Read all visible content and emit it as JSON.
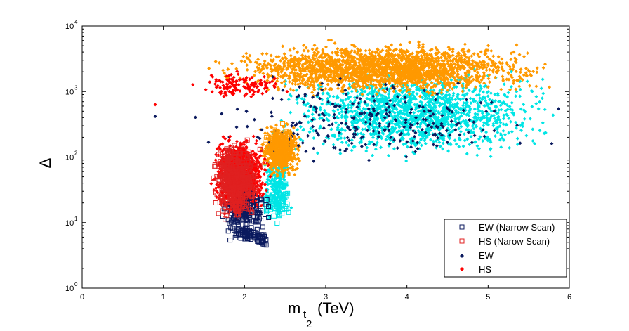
{
  "chart_data": {
    "type": "scatter",
    "title": "",
    "xlabel": {
      "main": "m",
      "sub": "t",
      "subsub": "2",
      "unit": "(TeV)"
    },
    "ylabel": "Δ",
    "xlim": [
      0,
      6
    ],
    "ylim": [
      1,
      10000
    ],
    "yscale": "log",
    "grid": false,
    "legend_position": "bottom-right",
    "x_ticks": [
      0,
      1,
      2,
      3,
      4,
      5,
      6
    ],
    "x_tick_labels": [
      "0",
      "1",
      "2",
      "3",
      "4",
      "5",
      "6"
    ],
    "y_ticks": [
      {
        "base": "10",
        "exp": "0"
      },
      {
        "base": "10",
        "exp": "1"
      },
      {
        "base": "10",
        "exp": "2"
      },
      {
        "base": "10",
        "exp": "3"
      },
      {
        "base": "10",
        "exp": "4"
      }
    ],
    "series": [
      {
        "name": "EW (Narrow Scan)",
        "marker": "open-square",
        "color": "#0b1a5e",
        "regions": [
          {
            "x": [
              1.65,
              2.35
            ],
            "logy": [
              0.85,
              1.6
            ],
            "count": 160
          },
          {
            "x": [
              1.75,
              2.3
            ],
            "logy": [
              0.65,
              1.0
            ],
            "count": 70
          },
          {
            "x": [
              2.1,
              2.3
            ],
            "logy": [
              0.6,
              0.9
            ],
            "count": 25
          }
        ]
      },
      {
        "name": "HS (Narow Scan)",
        "marker": "open-square",
        "color": "#e02020",
        "regions": [
          {
            "x": [
              1.55,
              2.25
            ],
            "logy": [
              1.0,
              2.35
            ],
            "count": 300
          },
          {
            "x": [
              1.62,
              2.15
            ],
            "logy": [
              0.9,
              2.2
            ],
            "count": 220
          }
        ]
      },
      {
        "name": "EW",
        "marker": "diamond",
        "color": "#0b1a5e",
        "regions": [
          {
            "x": [
              1.2,
              6.0
            ],
            "logy": [
              1.8,
              3.3
            ],
            "count": 260
          },
          {
            "x": [
              0.9,
              0.9
            ],
            "logy": [
              2.62,
              2.62
            ],
            "count": 1
          }
        ]
      },
      {
        "name": "HS",
        "marker": "diamond",
        "color": "#ff0000",
        "regions": [
          {
            "x": [
              1.55,
              2.35
            ],
            "logy": [
              1.0,
              2.4
            ],
            "count": 1100
          },
          {
            "x": [
              1.3,
              2.6
            ],
            "logy": [
              2.85,
              3.35
            ],
            "count": 140
          },
          {
            "x": [
              0.9,
              0.9
            ],
            "logy": [
              2.8,
              2.8
            ],
            "count": 1
          }
        ]
      },
      {
        "name": "",
        "marker": "diamond",
        "color": "#00e5e5",
        "in_legend": false,
        "regions": [
          {
            "x": [
              2.2,
              6.0
            ],
            "logy": [
              1.9,
              3.45
            ],
            "count": 1600
          },
          {
            "x": [
              2.2,
              2.6
            ],
            "logy": [
              0.9,
              2.5
            ],
            "count": 240
          }
        ]
      },
      {
        "name": "",
        "marker": "diamond",
        "color": "#ff9900",
        "in_legend": false,
        "regions": [
          {
            "x": [
              1.45,
              6.0
            ],
            "logy": [
              2.9,
              3.8
            ],
            "count": 2200
          },
          {
            "x": [
              2.15,
              2.75
            ],
            "logy": [
              1.6,
              2.6
            ],
            "count": 520
          }
        ]
      },
      {
        "name": "",
        "marker": "open-square",
        "color": "#00e5e5",
        "in_legend": false,
        "regions": [
          {
            "x": [
              2.2,
              2.6
            ],
            "logy": [
              0.95,
              1.7
            ],
            "count": 80
          }
        ]
      },
      {
        "name": "",
        "marker": "open-square",
        "color": "#ff9900",
        "in_legend": false,
        "regions": [
          {
            "x": [
              2.2,
              2.7
            ],
            "logy": [
              1.8,
              2.6
            ],
            "count": 110
          }
        ]
      }
    ]
  }
}
